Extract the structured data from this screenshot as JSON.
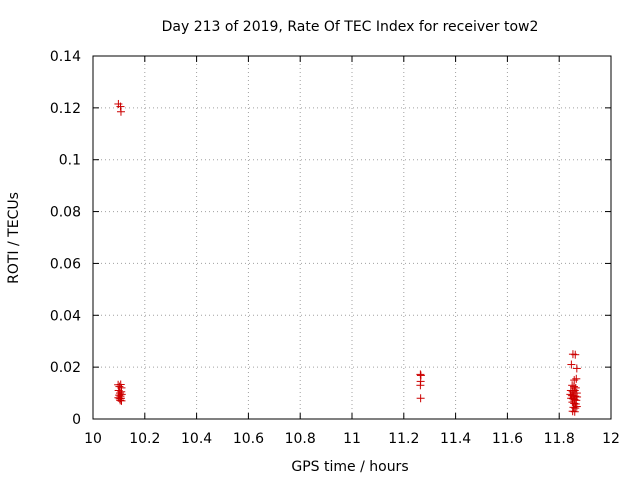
{
  "chart_data": {
    "type": "scatter",
    "title": "Day 213 of 2019, Rate Of TEC Index for receiver tow2",
    "xlabel": "GPS time / hours",
    "ylabel": "ROTI / TECUs",
    "xlim": [
      10,
      12
    ],
    "ylim": [
      0,
      0.14
    ],
    "xticks": [
      "10",
      "10.2",
      "10.4",
      "10.6",
      "10.8",
      "11",
      "11.2",
      "11.4",
      "11.6",
      "11.8",
      "12"
    ],
    "yticks": [
      "0",
      "0.02",
      "0.04",
      "0.06",
      "0.08",
      "0.1",
      "0.12",
      "0.14"
    ],
    "grid": true,
    "marker": "+",
    "colors": {
      "points": "#cc0000",
      "grid": "#a0a0a0",
      "axes": "#000000"
    },
    "points": [
      {
        "x": 10.098,
        "y": 0.1215
      },
      {
        "x": 10.106,
        "y": 0.1205
      },
      {
        "x": 10.108,
        "y": 0.1185
      },
      {
        "x": 10.097,
        "y": 0.0132
      },
      {
        "x": 10.102,
        "y": 0.0125
      },
      {
        "x": 10.107,
        "y": 0.0133
      },
      {
        "x": 10.11,
        "y": 0.012
      },
      {
        "x": 10.099,
        "y": 0.011
      },
      {
        "x": 10.104,
        "y": 0.01
      },
      {
        "x": 10.109,
        "y": 0.0105
      },
      {
        "x": 10.101,
        "y": 0.0092
      },
      {
        "x": 10.106,
        "y": 0.0088
      },
      {
        "x": 10.111,
        "y": 0.0095
      },
      {
        "x": 10.098,
        "y": 0.0082
      },
      {
        "x": 10.103,
        "y": 0.0078
      },
      {
        "x": 10.108,
        "y": 0.008
      },
      {
        "x": 10.105,
        "y": 0.0072
      },
      {
        "x": 10.11,
        "y": 0.007
      },
      {
        "x": 11.264,
        "y": 0.0172
      },
      {
        "x": 11.266,
        "y": 0.0168
      },
      {
        "x": 11.265,
        "y": 0.0145
      },
      {
        "x": 11.264,
        "y": 0.013
      },
      {
        "x": 11.265,
        "y": 0.008
      },
      {
        "x": 11.853,
        "y": 0.025
      },
      {
        "x": 11.862,
        "y": 0.0248
      },
      {
        "x": 11.847,
        "y": 0.021
      },
      {
        "x": 11.868,
        "y": 0.0195
      },
      {
        "x": 11.858,
        "y": 0.015
      },
      {
        "x": 11.866,
        "y": 0.0155
      },
      {
        "x": 11.85,
        "y": 0.013
      },
      {
        "x": 11.857,
        "y": 0.0125
      },
      {
        "x": 11.864,
        "y": 0.012
      },
      {
        "x": 11.845,
        "y": 0.011
      },
      {
        "x": 11.852,
        "y": 0.0105
      },
      {
        "x": 11.86,
        "y": 0.011
      },
      {
        "x": 11.868,
        "y": 0.01
      },
      {
        "x": 11.843,
        "y": 0.0095
      },
      {
        "x": 11.849,
        "y": 0.009
      },
      {
        "x": 11.855,
        "y": 0.0092
      },
      {
        "x": 11.862,
        "y": 0.0088
      },
      {
        "x": 11.869,
        "y": 0.0085
      },
      {
        "x": 11.846,
        "y": 0.008
      },
      {
        "x": 11.853,
        "y": 0.0078
      },
      {
        "x": 11.859,
        "y": 0.0075
      },
      {
        "x": 11.866,
        "y": 0.0072
      },
      {
        "x": 11.851,
        "y": 0.0065
      },
      {
        "x": 11.858,
        "y": 0.006
      },
      {
        "x": 11.864,
        "y": 0.0058
      },
      {
        "x": 11.855,
        "y": 0.0045
      },
      {
        "x": 11.862,
        "y": 0.0042
      },
      {
        "x": 11.868,
        "y": 0.0048
      },
      {
        "x": 11.852,
        "y": 0.003
      },
      {
        "x": 11.86,
        "y": 0.0028
      }
    ]
  }
}
